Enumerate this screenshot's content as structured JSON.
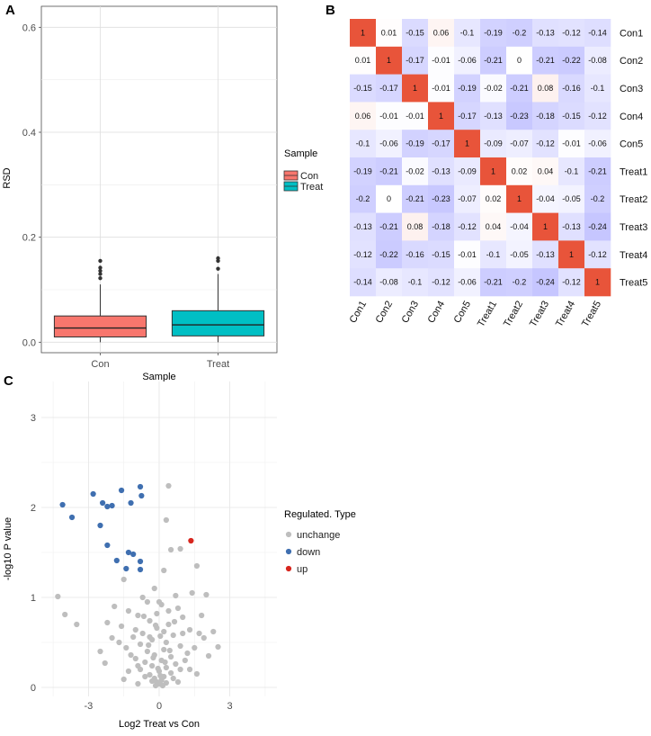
{
  "panels": {
    "a_label": "A",
    "b_label": "B",
    "c_label": "C"
  },
  "chart_data": [
    {
      "type": "boxplot",
      "xlabel": "Sample",
      "ylabel": "RSD",
      "ylim": [
        -0.02,
        0.64
      ],
      "yticks": [
        "0.0",
        "0.2",
        "0.4",
        "0.6"
      ],
      "ytick_values": [
        0,
        0.2,
        0.4,
        0.6
      ],
      "categories": [
        "Con",
        "Treat"
      ],
      "boxes": [
        {
          "name": "Con",
          "color": "#F8766D",
          "q1": 0.01,
          "median": 0.027,
          "q3": 0.05,
          "whisker_low": 0.0,
          "whisker_high": 0.11,
          "outliers": [
            0.122,
            0.13,
            0.136,
            0.142,
            0.155
          ]
        },
        {
          "name": "Treat",
          "color": "#00BFC4",
          "q1": 0.012,
          "median": 0.033,
          "q3": 0.06,
          "whisker_low": 0.0,
          "whisker_high": 0.13,
          "outliers": [
            0.14,
            0.155,
            0.16
          ]
        }
      ],
      "legend": {
        "title": "Sample",
        "items": [
          "Con",
          "Treat"
        ]
      }
    },
    {
      "type": "heatmap",
      "row_labels": [
        "Con1",
        "Con2",
        "Con3",
        "Con4",
        "Con5",
        "Treat1",
        "Treat2",
        "Treat3",
        "Treat4",
        "Treat5"
      ],
      "col_labels": [
        "Con1",
        "Con2",
        "Con3",
        "Con4",
        "Con5",
        "Treat1",
        "Treat2",
        "Treat3",
        "Treat4",
        "Treat5"
      ],
      "values": [
        [
          "1",
          "0.01",
          "-0.15",
          "0.06",
          "-0.1",
          "-0.19",
          "-0.2",
          "-0.13",
          "-0.12",
          "-0.14"
        ],
        [
          "0.01",
          "1",
          "-0.17",
          "-0.01",
          "-0.06",
          "-0.21",
          "0",
          "-0.21",
          "-0.22",
          "-0.08"
        ],
        [
          "-0.15",
          "-0.17",
          "1",
          "-0.01",
          "-0.19",
          "-0.02",
          "-0.21",
          "0.08",
          "-0.16",
          "-0.1"
        ],
        [
          "0.06",
          "-0.01",
          "-0.01",
          "1",
          "-0.17",
          "-0.13",
          "-0.23",
          "-0.18",
          "-0.15",
          "-0.12"
        ],
        [
          "-0.1",
          "-0.06",
          "-0.19",
          "-0.17",
          "1",
          "-0.09",
          "-0.07",
          "-0.12",
          "-0.01",
          "-0.06"
        ],
        [
          "-0.19",
          "-0.21",
          "-0.02",
          "-0.13",
          "-0.09",
          "1",
          "0.02",
          "0.04",
          "-0.1",
          "-0.21"
        ],
        [
          "-0.2",
          "0",
          "-0.21",
          "-0.23",
          "-0.07",
          "0.02",
          "1",
          "-0.04",
          "-0.05",
          "-0.2"
        ],
        [
          "-0.13",
          "-0.21",
          "0.08",
          "-0.18",
          "-0.12",
          "0.04",
          "-0.04",
          "1",
          "-0.13",
          "-0.24"
        ],
        [
          "-0.12",
          "-0.22",
          "-0.16",
          "-0.15",
          "-0.01",
          "-0.1",
          "-0.05",
          "-0.13",
          "1",
          "-0.12"
        ],
        [
          "-0.14",
          "-0.08",
          "-0.1",
          "-0.12",
          "-0.06",
          "-0.21",
          "-0.2",
          "-0.24",
          "-0.12",
          "1"
        ]
      ],
      "colors": {
        "high": "#E8543A",
        "zero": "#FFFFFF",
        "low": "#7070FF"
      }
    },
    {
      "type": "scatter",
      "xlabel": "Log2 Treat vs Con",
      "ylabel": "-log10 P value",
      "xlim": [
        -5,
        5
      ],
      "ylim": [
        -0.1,
        3.4
      ],
      "xticks": [
        "-3",
        "0",
        "3"
      ],
      "xtick_values": [
        -3,
        0,
        3
      ],
      "yticks": [
        "0",
        "1",
        "2",
        "3"
      ],
      "ytick_values": [
        0,
        1,
        2,
        3
      ],
      "legend": {
        "title": "Regulated. Type",
        "items": [
          "unchange",
          "down",
          "up"
        ]
      },
      "series": [
        {
          "name": "down",
          "color": "#3F6FB0",
          "points": [
            [
              -4.1,
              2.03
            ],
            [
              -3.7,
              1.89
            ],
            [
              -2.8,
              2.15
            ],
            [
              -2.4,
              2.05
            ],
            [
              -2.2,
              2.01
            ],
            [
              -2.0,
              2.02
            ],
            [
              -1.6,
              2.19
            ],
            [
              -1.2,
              2.05
            ],
            [
              -0.8,
              2.23
            ],
            [
              -0.75,
              2.13
            ],
            [
              -2.5,
              1.8
            ],
            [
              -2.2,
              1.58
            ],
            [
              -1.3,
              1.5
            ],
            [
              -1.1,
              1.48
            ],
            [
              -1.8,
              1.41
            ],
            [
              -1.4,
              1.32
            ],
            [
              -0.8,
              1.4
            ],
            [
              -0.8,
              1.31
            ]
          ]
        },
        {
          "name": "up",
          "color": "#D7261E",
          "points": [
            [
              1.35,
              1.63
            ]
          ]
        },
        {
          "name": "unchange",
          "color": "#BEBEBE",
          "points": [
            [
              0.4,
              2.24
            ],
            [
              0.3,
              1.86
            ],
            [
              -4.3,
              1.01
            ],
            [
              -4.0,
              0.81
            ],
            [
              0.5,
              1.53
            ],
            [
              0.9,
              1.54
            ],
            [
              1.6,
              1.35
            ],
            [
              -1.5,
              1.2
            ],
            [
              0.2,
              1.3
            ],
            [
              1.4,
              1.05
            ],
            [
              2.0,
              1.03
            ],
            [
              -3.5,
              0.7
            ],
            [
              -2.2,
              0.72
            ],
            [
              2.3,
              0.62
            ],
            [
              1.9,
              0.55
            ],
            [
              -0.2,
              1.1
            ],
            [
              -0.5,
              0.95
            ],
            [
              0.1,
              0.92
            ],
            [
              0.8,
              0.88
            ],
            [
              -1.3,
              0.85
            ],
            [
              -0.9,
              0.8
            ],
            [
              1.0,
              0.78
            ],
            [
              -0.4,
              0.74
            ],
            [
              0.4,
              0.7
            ],
            [
              -1.6,
              0.68
            ],
            [
              -0.1,
              0.66
            ],
            [
              1.3,
              0.64
            ],
            [
              -0.7,
              0.6
            ],
            [
              0.6,
              0.58
            ],
            [
              -1.1,
              0.56
            ],
            [
              -0.3,
              0.53
            ],
            [
              0.3,
              0.5
            ],
            [
              -0.8,
              0.48
            ],
            [
              0.9,
              0.46
            ],
            [
              -1.4,
              0.44
            ],
            [
              0.2,
              0.42
            ],
            [
              -0.5,
              0.4
            ],
            [
              1.2,
              0.38
            ],
            [
              -0.2,
              0.36
            ],
            [
              0.5,
              0.34
            ],
            [
              -1.0,
              0.32
            ],
            [
              0.1,
              0.3
            ],
            [
              -0.6,
              0.28
            ],
            [
              0.7,
              0.26
            ],
            [
              -0.3,
              0.24
            ],
            [
              0.3,
              0.22
            ],
            [
              -0.8,
              0.2
            ],
            [
              0.0,
              0.18
            ],
            [
              0.5,
              0.16
            ],
            [
              -0.4,
              0.14
            ],
            [
              0.2,
              0.12
            ],
            [
              -0.2,
              0.1
            ],
            [
              0.1,
              0.08
            ],
            [
              -0.1,
              0.06
            ],
            [
              0.0,
              0.04
            ],
            [
              0.3,
              0.05
            ],
            [
              -0.3,
              0.07
            ],
            [
              0.6,
              0.1
            ],
            [
              -0.6,
              0.12
            ],
            [
              0.9,
              0.2
            ],
            [
              -0.9,
              0.24
            ],
            [
              1.1,
              0.3
            ],
            [
              -1.2,
              0.36
            ],
            [
              1.5,
              0.44
            ],
            [
              -1.7,
              0.5
            ],
            [
              1.7,
              0.6
            ],
            [
              -2.0,
              0.55
            ],
            [
              2.5,
              0.45
            ],
            [
              -2.5,
              0.4
            ],
            [
              1.3,
              0.2
            ],
            [
              -1.3,
              0.18
            ],
            [
              0.4,
              0.85
            ],
            [
              -0.1,
              0.82
            ],
            [
              0.7,
              1.02
            ],
            [
              -0.7,
              1.0
            ],
            [
              0.0,
              0.95
            ],
            [
              1.8,
              0.8
            ],
            [
              -1.9,
              0.9
            ],
            [
              0.2,
              0.62
            ],
            [
              -0.4,
              0.56
            ],
            [
              0.15,
              0.02
            ],
            [
              -0.15,
              0.02
            ],
            [
              0.05,
              0.13
            ],
            [
              -0.05,
              0.21
            ],
            [
              0.25,
              0.28
            ],
            [
              -0.25,
              0.33
            ],
            [
              0.45,
              0.41
            ],
            [
              -0.45,
              0.47
            ],
            [
              0.05,
              0.57
            ],
            [
              -0.15,
              0.69
            ],
            [
              0.65,
              0.73
            ],
            [
              -0.65,
              0.79
            ],
            [
              1.0,
              0.6
            ],
            [
              -1.0,
              0.64
            ],
            [
              2.1,
              0.35
            ],
            [
              -2.3,
              0.27
            ],
            [
              1.6,
              0.15
            ],
            [
              -1.5,
              0.09
            ],
            [
              0.8,
              0.06
            ],
            [
              -0.9,
              0.04
            ]
          ]
        }
      ]
    }
  ]
}
